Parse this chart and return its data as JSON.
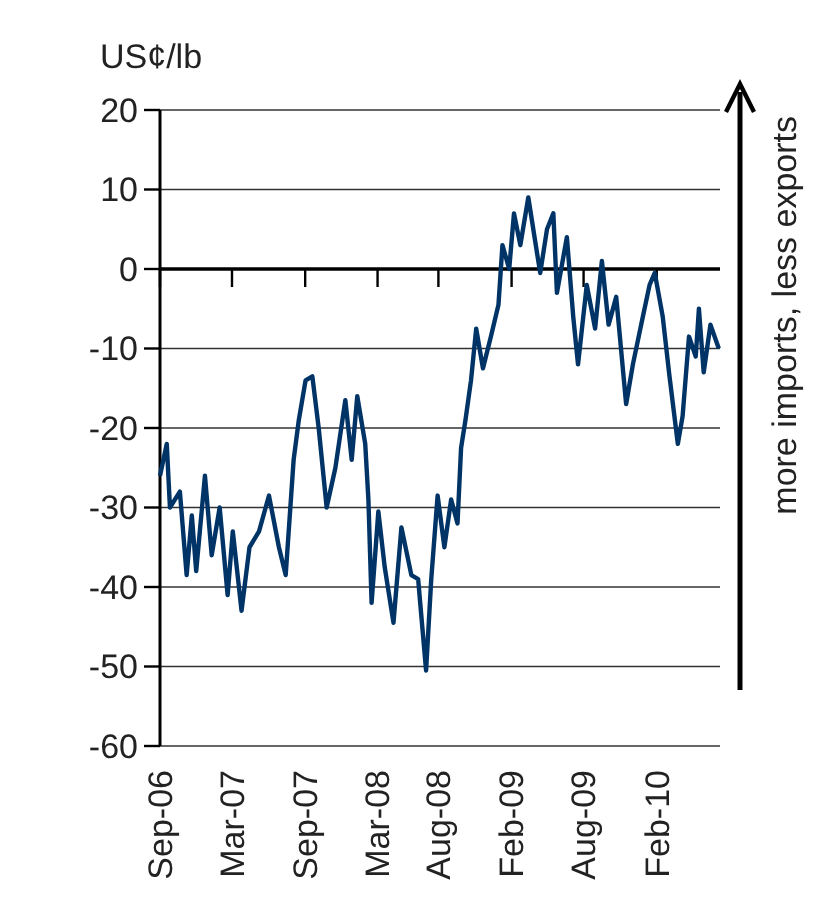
{
  "chart_data": {
    "type": "line",
    "ylabel": "US¢/lb",
    "annotations": [
      "more imports, less exports"
    ],
    "x": [
      "2006-09-01",
      "2006-09-18",
      "2006-09-26",
      "2006-10-21",
      "2006-11-07",
      "2006-11-20",
      "2006-12-01",
      "2006-12-23",
      "2007-01-09",
      "2007-01-29",
      "2007-02-18",
      "2007-03-03",
      "2007-03-25",
      "2007-04-14",
      "2007-05-08",
      "2007-06-02",
      "2007-06-27",
      "2007-07-14",
      "2007-08-03",
      "2007-08-16",
      "2007-09-02",
      "2007-09-19",
      "2007-10-05",
      "2007-10-25",
      "2007-11-16",
      "2007-12-11",
      "2007-12-27",
      "2008-01-10",
      "2008-01-30",
      "2008-02-07",
      "2008-02-15",
      "2008-03-03",
      "2008-03-19",
      "2008-04-10",
      "2008-04-30",
      "2008-05-25",
      "2008-06-11",
      "2008-07-01",
      "2008-07-14",
      "2008-07-30",
      "2008-08-16",
      "2008-09-02",
      "2008-09-18",
      "2008-09-27",
      "2008-10-08",
      "2008-10-22",
      "2008-11-04",
      "2008-11-21",
      "2008-12-11",
      "2008-12-30",
      "2009-01-09",
      "2009-01-26",
      "2009-02-07",
      "2009-02-23",
      "2009-03-15",
      "2009-04-06",
      "2009-04-14",
      "2009-05-01",
      "2009-05-17",
      "2009-05-26",
      "2009-06-20",
      "2009-07-06",
      "2009-07-18",
      "2009-08-09",
      "2009-08-30",
      "2009-09-16",
      "2009-10-03",
      "2009-10-22",
      "2009-11-16",
      "2009-12-03",
      "2009-12-28",
      "2010-01-14",
      "2010-01-27",
      "2010-02-16",
      "2010-03-05",
      "2010-03-26",
      "2010-04-07",
      "2010-04-23",
      "2010-05-10",
      "2010-05-18",
      "2010-05-30",
      "2010-06-16",
      "2010-07-07"
    ],
    "series": [
      {
        "color": "#003366",
        "values": [
          -26,
          -22,
          -30,
          -28,
          -38.5,
          -31,
          -38,
          -26,
          -36,
          -30,
          -41,
          -33,
          -43,
          -35,
          -33,
          -28.5,
          -35,
          -38.5,
          -24,
          -19,
          -14,
          -13.5,
          -20,
          -30,
          -25,
          -16.5,
          -24,
          -16,
          -22,
          -29,
          -42,
          -30.5,
          -37.5,
          -44.5,
          -32.5,
          -38.5,
          -39,
          -50.5,
          -39,
          -28.5,
          -35,
          -29,
          -32,
          -22.5,
          -19,
          -14,
          -7.5,
          -12.5,
          -8.5,
          -4.5,
          3,
          0,
          7,
          3,
          9,
          2,
          -0.5,
          5,
          7,
          -3,
          4,
          -6,
          -12,
          -2,
          -7.5,
          1,
          -7,
          -3.5,
          -17,
          -12,
          -6,
          -2,
          -0.5,
          -6,
          -13.5,
          -22,
          -18.5,
          -8.5,
          -11,
          -5,
          -13,
          -7,
          -10
        ]
      }
    ],
    "xlim": [
      "2006-09-01",
      "2010-07-10"
    ],
    "xticks": [
      {
        "value": "2006-09-01",
        "label": "Sep-06"
      },
      {
        "value": "2007-03-01",
        "label": "Mar-07"
      },
      {
        "value": "2007-09-01",
        "label": "Sep-07"
      },
      {
        "value": "2008-03-01",
        "label": "Mar-08"
      },
      {
        "value": "2008-08-01",
        "label": "Aug-08"
      },
      {
        "value": "2009-02-01",
        "label": "Feb-09"
      },
      {
        "value": "2009-08-01",
        "label": "Aug-09"
      },
      {
        "value": "2010-02-01",
        "label": "Feb-10"
      }
    ],
    "ylim": [
      -60,
      20
    ],
    "yticks": [
      -60,
      -50,
      -40,
      -30,
      -20,
      -10,
      0,
      10,
      20
    ],
    "grid": "y",
    "marker": "none",
    "line_style": "solid"
  }
}
